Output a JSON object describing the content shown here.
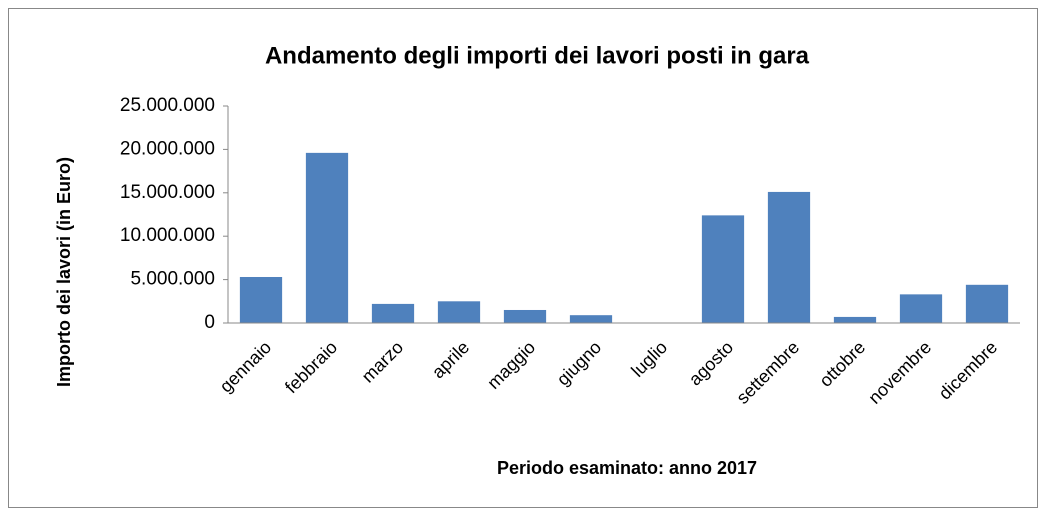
{
  "chart_data": {
    "type": "bar",
    "title": "Andamento degli importi dei lavori posti in gara",
    "x_label": "Periodo esaminato: anno 2017",
    "y_label": "Importo dei lavori (in Euro)",
    "categories": [
      "gennaio",
      "febbraio",
      "marzo",
      "aprile",
      "maggio",
      "giugno",
      "luglio",
      "agosto",
      "settembre",
      "ottobre",
      "novembre",
      "dicembre"
    ],
    "values": [
      5300000,
      19600000,
      2200000,
      2500000,
      1500000,
      900000,
      0,
      12400000,
      15100000,
      700000,
      3300000,
      4400000
    ],
    "color": "#4f81bd",
    "ylim": [
      0,
      25000000
    ],
    "yticks": [
      0,
      {
        "value": 5000000,
        "label": "5.000.000"
      },
      {
        "value": 10000000,
        "label": "10.000.000"
      },
      {
        "value": 15000000,
        "label": "15.000.000"
      },
      {
        "value": 20000000,
        "label": "20.000.000"
      },
      {
        "value": 25000000,
        "label": "25.000.000"
      }
    ],
    "grid": false
  }
}
